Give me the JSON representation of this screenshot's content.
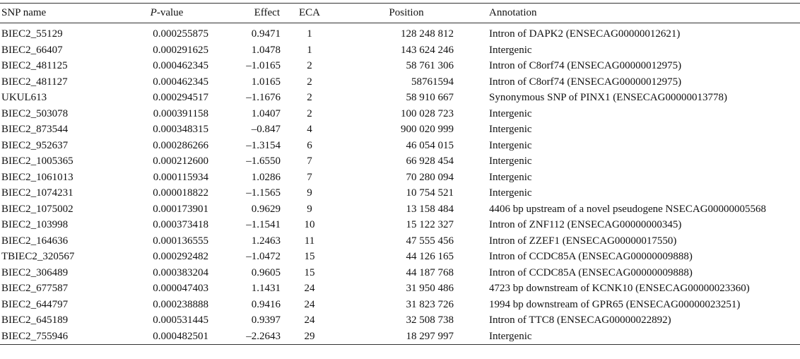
{
  "table": {
    "headers": {
      "snp": "SNP name",
      "p_italic": "P",
      "p_rest": "-value",
      "effect": "Effect",
      "eca": "ECA",
      "position": "Position",
      "annotation": "Annotation"
    },
    "rows": [
      {
        "snp": "BIEC2_55129",
        "p": "0.000255875",
        "effect": "0.9471",
        "eca": "1",
        "position": "128 248 812",
        "annotation": "Intron of DAPK2 (ENSECAG00000012621)"
      },
      {
        "snp": "BIEC2_66407",
        "p": "0.000291625",
        "effect": "1.0478",
        "eca": "1",
        "position": "143 624 246",
        "annotation": "Intergenic"
      },
      {
        "snp": "BIEC2_481125",
        "p": "0.000462345",
        "effect": "–1.0165",
        "eca": "2",
        "position": "58 761 306",
        "annotation": "Intron of C8orf74 (ENSECAG00000012975)"
      },
      {
        "snp": "BIEC2_481127",
        "p": "0.000462345",
        "effect": "1.0165",
        "eca": "2",
        "position": "58761594",
        "annotation": "Intron of C8orf74 (ENSECAG00000012975)"
      },
      {
        "snp": "UKUL613",
        "p": "0.000294517",
        "effect": "–1.1676",
        "eca": "2",
        "position": "58 910 667",
        "annotation": "Synonymous SNP of PINX1 (ENSECAG00000013778)"
      },
      {
        "snp": "BIEC2_503078",
        "p": "0.000391158",
        "effect": "1.0407",
        "eca": "2",
        "position": "100 028 723",
        "annotation": "Intergenic"
      },
      {
        "snp": "BIEC2_873544",
        "p": "0.000348315",
        "effect": "–0.847",
        "eca": "4",
        "position": "900 020 999",
        "annotation": "Intergenic"
      },
      {
        "snp": "BIEC2_952637",
        "p": "0.000286266",
        "effect": "–1.3154",
        "eca": "6",
        "position": "46 054 015",
        "annotation": "Intergenic"
      },
      {
        "snp": "BIEC2_1005365",
        "p": "0.000212600",
        "effect": "–1.6550",
        "eca": "7",
        "position": "66 928 454",
        "annotation": "Intergenic"
      },
      {
        "snp": "BIEC2_1061013",
        "p": "0.000115934",
        "effect": "1.0286",
        "eca": "7",
        "position": "70 280 094",
        "annotation": "Intergenic"
      },
      {
        "snp": "BIEC2_1074231",
        "p": "0.000018822",
        "effect": "–1.1565",
        "eca": "9",
        "position": "10 754 521",
        "annotation": "Intergenic"
      },
      {
        "snp": "BIEC2_1075002",
        "p": "0.000173901",
        "effect": "0.9629",
        "eca": "9",
        "position": "13 158 484",
        "annotation": "4406 bp upstream of a novel pseudogene NSECAG00000005568"
      },
      {
        "snp": "BIEC2_103998",
        "p": "0.000373418",
        "effect": "–1.1541",
        "eca": "10",
        "position": "15 122 327",
        "annotation": "Intron of ZNF112 (ENSECAG00000000345)"
      },
      {
        "snp": "BIEC2_164636",
        "p": "0.000136555",
        "effect": "1.2463",
        "eca": "11",
        "position": "47 555 456",
        "annotation": "Intron of ZZEF1 (ENSECAG00000017550)"
      },
      {
        "snp": "TBIEC2_320567",
        "p": "0.000292482",
        "effect": "–1.0472",
        "eca": "15",
        "position": "44 126 165",
        "annotation": "Intron of CCDC85A (ENSECAG00000009888)"
      },
      {
        "snp": "BIEC2_306489",
        "p": "0.000383204",
        "effect": "0.9605",
        "eca": "15",
        "position": "44 187 768",
        "annotation": "Intron of CCDC85A (ENSECAG00000009888)"
      },
      {
        "snp": "BIEC2_677587",
        "p": "0.000047403",
        "effect": "1.1431",
        "eca": "24",
        "position": "31 950 486",
        "annotation": "4723 bp downstream of KCNK10 (ENSECAG00000023360)"
      },
      {
        "snp": "BIEC2_644797",
        "p": "0.000238888",
        "effect": "0.9416",
        "eca": "24",
        "position": "31 823 726",
        "annotation": "1994 bp downstream of GPR65 (ENSECAG00000023251)"
      },
      {
        "snp": "BIEC2_645189",
        "p": "0.000531445",
        "effect": "0.9397",
        "eca": "24",
        "position": "32 508 738",
        "annotation": "Intron of TTC8 (ENSECAG00000022892)"
      },
      {
        "snp": "BIEC2_755946",
        "p": "0.000482501",
        "effect": "–2.2643",
        "eca": "29",
        "position": "18 297 997",
        "annotation": "Intergenic"
      }
    ]
  }
}
